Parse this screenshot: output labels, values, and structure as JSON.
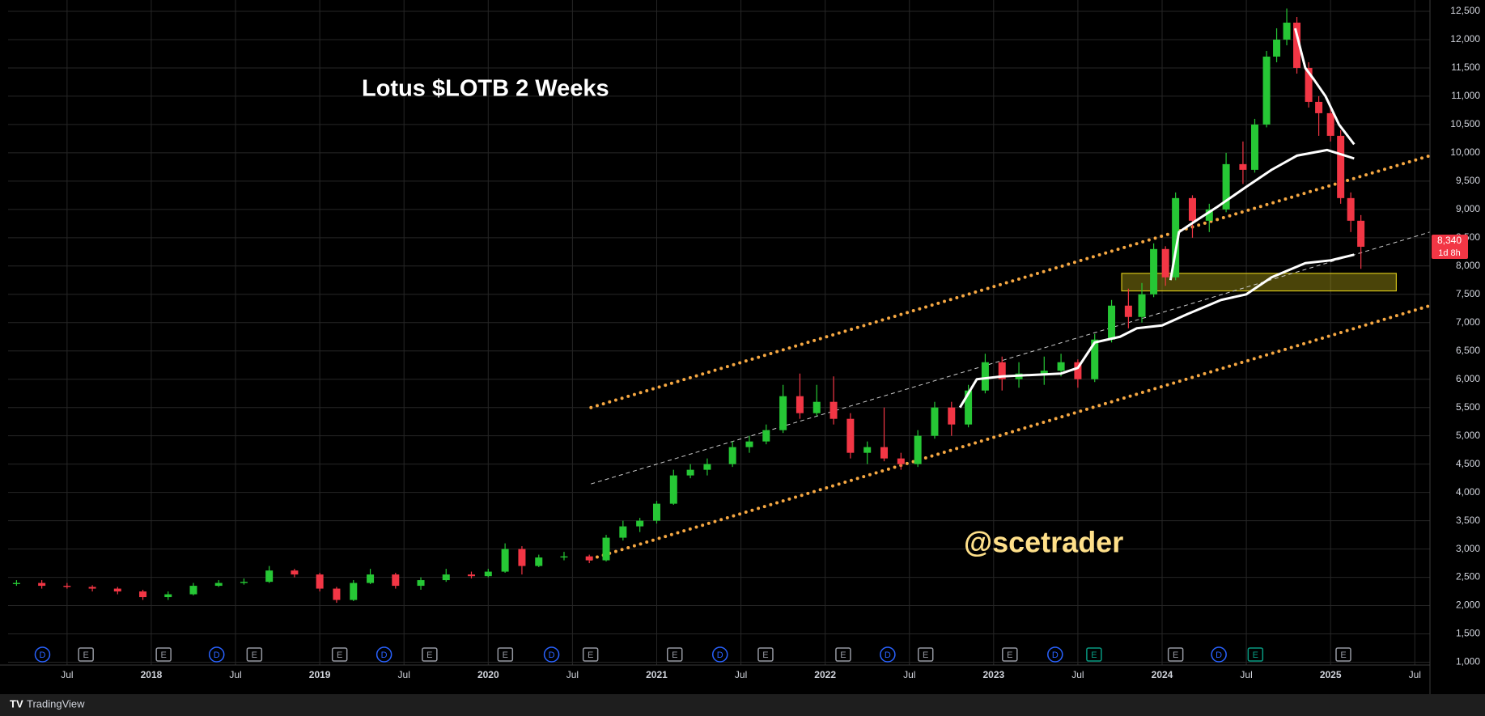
{
  "chart_data": {
    "type": "candlestick",
    "title": "Lotus $LOTB 2 Weeks",
    "watermark": "@scetrader",
    "footer": "TradingView",
    "xlim": [
      2017.15,
      2025.59
    ],
    "ylim": [
      950,
      12700
    ],
    "xticks": [
      {
        "value": 2017.5,
        "label": "Jul"
      },
      2018,
      {
        "value": 2018.5,
        "label": "Jul"
      },
      2019,
      {
        "value": 2019.5,
        "label": "Jul"
      },
      2020,
      {
        "value": 2020.5,
        "label": "Jul"
      },
      2021,
      {
        "value": 2021.5,
        "label": "Jul"
      },
      2022,
      {
        "value": 2022.5,
        "label": "Jul"
      },
      2023,
      {
        "value": 2023.5,
        "label": "Jul"
      },
      2024,
      {
        "value": 2024.5,
        "label": "Jul"
      },
      2025,
      {
        "value": 2025.5,
        "label": "Jul"
      }
    ],
    "yticks": [
      {
        "value": 1000,
        "label": "1,000"
      },
      {
        "value": 1500,
        "label": "1,500"
      },
      {
        "value": 2000,
        "label": "2,000"
      },
      {
        "value": 2500,
        "label": "2,500"
      },
      {
        "value": 3000,
        "label": "3,000"
      },
      {
        "value": 3500,
        "label": "3,500"
      },
      {
        "value": 4000,
        "label": "4,000"
      },
      {
        "value": 4500,
        "label": "4,500"
      },
      {
        "value": 5000,
        "label": "5,000"
      },
      {
        "value": 5500,
        "label": "5,500"
      },
      {
        "value": 6000,
        "label": "6,000"
      },
      {
        "value": 6500,
        "label": "6,500"
      },
      {
        "value": 7000,
        "label": "7,000"
      },
      {
        "value": 7500,
        "label": "7,500"
      },
      {
        "value": 8000,
        "label": "8,000"
      },
      {
        "value": 8500,
        "label": "8,500"
      },
      {
        "value": 9000,
        "label": "9,000"
      },
      {
        "value": 9500,
        "label": "9,500"
      },
      {
        "value": 10000,
        "label": "10,000"
      },
      {
        "value": 10500,
        "label": "10,500"
      },
      {
        "value": 11000,
        "label": "11,000"
      },
      {
        "value": 11500,
        "label": "11,500"
      },
      {
        "value": 12000,
        "label": "12,000"
      },
      {
        "value": 12500,
        "label": "12,500"
      }
    ],
    "grid": true,
    "up_color": "#26c735",
    "down_color": "#f23645",
    "candles": [
      [
        2017.2,
        2380,
        2450,
        2350,
        2400
      ],
      [
        2017.35,
        2400,
        2450,
        2300,
        2350
      ],
      [
        2017.5,
        2350,
        2400,
        2300,
        2330
      ],
      [
        2017.65,
        2330,
        2360,
        2250,
        2300
      ],
      [
        2017.8,
        2300,
        2330,
        2200,
        2250
      ],
      [
        2017.95,
        2250,
        2280,
        2100,
        2150
      ],
      [
        2018.1,
        2150,
        2250,
        2100,
        2200
      ],
      [
        2018.25,
        2200,
        2400,
        2180,
        2350
      ],
      [
        2018.4,
        2350,
        2450,
        2330,
        2400
      ],
      [
        2018.55,
        2400,
        2480,
        2370,
        2420
      ],
      [
        2018.7,
        2420,
        2700,
        2400,
        2620
      ],
      [
        2018.85,
        2620,
        2650,
        2500,
        2550
      ],
      [
        2019.0,
        2550,
        2580,
        2250,
        2300
      ],
      [
        2019.1,
        2300,
        2330,
        2050,
        2100
      ],
      [
        2019.2,
        2100,
        2450,
        2080,
        2400
      ],
      [
        2019.3,
        2400,
        2650,
        2380,
        2550
      ],
      [
        2019.45,
        2550,
        2580,
        2300,
        2350
      ],
      [
        2019.6,
        2350,
        2500,
        2280,
        2450
      ],
      [
        2019.75,
        2450,
        2650,
        2420,
        2550
      ],
      [
        2019.9,
        2550,
        2600,
        2480,
        2520
      ],
      [
        2020.0,
        2520,
        2650,
        2500,
        2600
      ],
      [
        2020.1,
        2600,
        3100,
        2580,
        3000
      ],
      [
        2020.2,
        3000,
        3050,
        2550,
        2700
      ],
      [
        2020.3,
        2700,
        2900,
        2680,
        2850
      ],
      [
        2020.45,
        2850,
        2950,
        2800,
        2870
      ],
      [
        2020.6,
        2870,
        2900,
        2750,
        2800
      ],
      [
        2020.7,
        2800,
        3250,
        2780,
        3200
      ],
      [
        2020.8,
        3200,
        3500,
        3150,
        3400
      ],
      [
        2020.9,
        3400,
        3550,
        3300,
        3500
      ],
      [
        2021.0,
        3500,
        3850,
        3450,
        3800
      ],
      [
        2021.1,
        3800,
        4400,
        3780,
        4300
      ],
      [
        2021.2,
        4300,
        4500,
        4250,
        4400
      ],
      [
        2021.3,
        4400,
        4600,
        4300,
        4500
      ],
      [
        2021.45,
        4500,
        4900,
        4450,
        4800
      ],
      [
        2021.55,
        4800,
        5000,
        4700,
        4900
      ],
      [
        2021.65,
        4900,
        5200,
        4850,
        5100
      ],
      [
        2021.75,
        5100,
        5900,
        5050,
        5700
      ],
      [
        2021.85,
        5700,
        6100,
        5300,
        5400
      ],
      [
        2021.95,
        5400,
        5900,
        5350,
        5600
      ],
      [
        2022.05,
        5600,
        6050,
        5200,
        5300
      ],
      [
        2022.15,
        5300,
        5400,
        4600,
        4700
      ],
      [
        2022.25,
        4700,
        4900,
        4500,
        4800
      ],
      [
        2022.35,
        4800,
        5500,
        4550,
        4600
      ],
      [
        2022.45,
        4600,
        4700,
        4400,
        4500
      ],
      [
        2022.55,
        4500,
        5100,
        4450,
        5000
      ],
      [
        2022.65,
        5000,
        5600,
        4950,
        5500
      ],
      [
        2022.75,
        5500,
        5600,
        5000,
        5200
      ],
      [
        2022.85,
        5200,
        5900,
        5150,
        5800
      ],
      [
        2022.95,
        5800,
        6450,
        5750,
        6300
      ],
      [
        2023.05,
        6300,
        6400,
        5800,
        6000
      ],
      [
        2023.15,
        6000,
        6300,
        5850,
        6100
      ],
      [
        2023.3,
        6100,
        6400,
        5900,
        6150
      ],
      [
        2023.4,
        6150,
        6450,
        6050,
        6300
      ],
      [
        2023.5,
        6300,
        6350,
        5850,
        6000
      ],
      [
        2023.6,
        6000,
        6800,
        5950,
        6700
      ],
      [
        2023.7,
        6700,
        7400,
        6650,
        7300
      ],
      [
        2023.8,
        7300,
        7600,
        6900,
        7100
      ],
      [
        2023.88,
        7100,
        7700,
        7000,
        7500
      ],
      [
        2023.95,
        7500,
        8400,
        7450,
        8300
      ],
      [
        2024.02,
        8300,
        8350,
        7650,
        7800
      ],
      [
        2024.08,
        7800,
        9300,
        7750,
        9200
      ],
      [
        2024.18,
        9200,
        9250,
        8500,
        8800
      ],
      [
        2024.28,
        8800,
        9100,
        8600,
        9000
      ],
      [
        2024.38,
        9000,
        10000,
        8950,
        9800
      ],
      [
        2024.48,
        9800,
        10200,
        9450,
        9700
      ],
      [
        2024.55,
        9700,
        10600,
        9650,
        10500
      ],
      [
        2024.62,
        10500,
        11800,
        10450,
        11700
      ],
      [
        2024.68,
        11700,
        12200,
        11600,
        12000
      ],
      [
        2024.74,
        12000,
        12550,
        11900,
        12300
      ],
      [
        2024.8,
        12300,
        12400,
        11400,
        11500
      ],
      [
        2024.87,
        11500,
        11600,
        10800,
        10900
      ],
      [
        2024.93,
        10900,
        11000,
        10300,
        10700
      ],
      [
        2025.0,
        10700,
        10800,
        10200,
        10300
      ],
      [
        2025.06,
        10300,
        10400,
        9100,
        9200
      ],
      [
        2025.12,
        9200,
        9300,
        8600,
        8800
      ],
      [
        2025.18,
        8800,
        8900,
        7950,
        8340
      ]
    ],
    "series": [
      {
        "x": [
          2024.79,
          2024.85,
          2024.9,
          2024.97,
          2025.05,
          2025.14
        ],
        "values": [
          12200,
          11500,
          11300,
          11000,
          10500,
          10150
        ],
        "color": "#ffffff"
      },
      {
        "x": [
          2024.05,
          2024.1,
          2024.2,
          2024.33,
          2024.5,
          2024.65,
          2024.8,
          2024.98,
          2025.14
        ],
        "values": [
          7750,
          8600,
          8800,
          9050,
          9400,
          9700,
          9950,
          10050,
          9900
        ],
        "color": "#ffffff"
      },
      {
        "x": [
          2022.8,
          2022.9,
          2023.05,
          2023.4,
          2023.5,
          2023.6,
          2023.75,
          2023.85,
          2024.0,
          2024.15,
          2024.35,
          2024.5,
          2024.65,
          2024.85,
          2025.0,
          2025.14
        ],
        "values": [
          5500,
          6000,
          6050,
          6100,
          6200,
          6650,
          6750,
          6900,
          6950,
          7150,
          7400,
          7500,
          7800,
          8050,
          8100,
          8200
        ],
        "color": "#ffffff"
      }
    ],
    "trend_lines": [
      {
        "x": [
          2020.61,
          2025.59
        ],
        "values": [
          5500,
          9950
        ],
        "color": "#f5a742",
        "style": "dotted"
      },
      {
        "x": [
          2020.61,
          2025.59
        ],
        "values": [
          2825,
          7300
        ],
        "color": "#f5a742",
        "style": "dotted"
      },
      {
        "x": [
          2020.61,
          2025.59
        ],
        "values": [
          4150,
          8600
        ],
        "color": "#cccccc",
        "style": "dashed"
      }
    ],
    "zone": {
      "x": [
        2023.76,
        2025.39
      ],
      "y": [
        7560,
        7870
      ],
      "color": "#d4c21a"
    },
    "last_price": {
      "value": 8340,
      "label": "8,340"
    },
    "countdown": "1d 8h",
    "events": [
      {
        "x": 2017.354,
        "label": "D",
        "color": "#2962ff"
      },
      {
        "x": 2017.612,
        "label": "E",
        "color": "#9598a1"
      },
      {
        "x": 2018.073,
        "label": "E",
        "color": "#9598a1"
      },
      {
        "x": 2018.388,
        "label": "D",
        "color": "#2962ff"
      },
      {
        "x": 2018.612,
        "label": "E",
        "color": "#9598a1"
      },
      {
        "x": 2019.118,
        "label": "E",
        "color": "#9598a1"
      },
      {
        "x": 2019.382,
        "label": "D",
        "color": "#2962ff"
      },
      {
        "x": 2019.652,
        "label": "E",
        "color": "#9598a1"
      },
      {
        "x": 2020.101,
        "label": "E",
        "color": "#9598a1"
      },
      {
        "x": 2020.376,
        "label": "D",
        "color": "#2962ff"
      },
      {
        "x": 2020.607,
        "label": "E",
        "color": "#9598a1"
      },
      {
        "x": 2021.107,
        "label": "E",
        "color": "#9598a1"
      },
      {
        "x": 2021.376,
        "label": "D",
        "color": "#2962ff"
      },
      {
        "x": 2021.646,
        "label": "E",
        "color": "#9598a1"
      },
      {
        "x": 2022.107,
        "label": "E",
        "color": "#9598a1"
      },
      {
        "x": 2022.371,
        "label": "D",
        "color": "#2962ff"
      },
      {
        "x": 2022.596,
        "label": "E",
        "color": "#9598a1"
      },
      {
        "x": 2023.096,
        "label": "E",
        "color": "#9598a1"
      },
      {
        "x": 2023.365,
        "label": "D",
        "color": "#2962ff"
      },
      {
        "x": 2023.596,
        "label": "E",
        "color": "#089981"
      },
      {
        "x": 2024.08,
        "label": "E",
        "color": "#9598a1"
      },
      {
        "x": 2024.337,
        "label": "D",
        "color": "#2962ff"
      },
      {
        "x": 2024.554,
        "label": "E",
        "color": "#089981"
      },
      {
        "x": 2025.076,
        "label": "E",
        "color": "#9598a1"
      }
    ]
  }
}
